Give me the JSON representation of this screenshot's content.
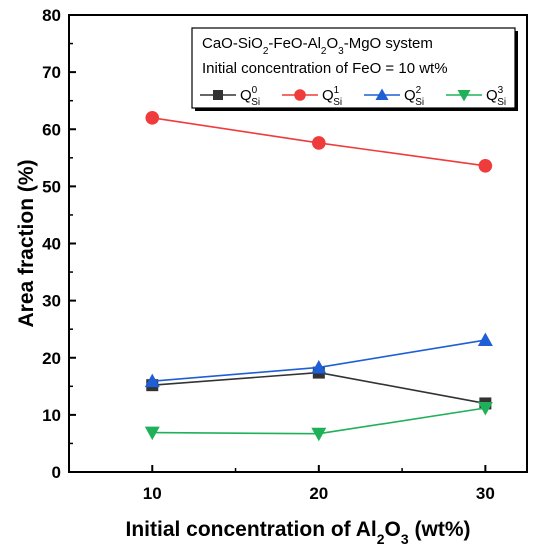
{
  "chart_data": {
    "type": "line",
    "title": "",
    "annotations": [
      {
        "id": "system",
        "parts": [
          {
            "t": "CaO-SiO"
          },
          {
            "t": "2",
            "sub": true
          },
          {
            "t": "-FeO-Al"
          },
          {
            "t": "2",
            "sub": true
          },
          {
            "t": "O"
          },
          {
            "t": "3",
            "sub": true
          },
          {
            "t": "-MgO system"
          }
        ]
      },
      {
        "id": "feo",
        "parts": [
          {
            "t": "Initial concentration of FeO = 10 wt%"
          }
        ]
      }
    ],
    "xlabel_parts": [
      {
        "t": "Initial concentration of Al"
      },
      {
        "t": "2",
        "sub": true
      },
      {
        "t": "O"
      },
      {
        "t": "3",
        "sub": true
      },
      {
        "t": " (wt%)"
      }
    ],
    "ylabel": "Area fraction (%)",
    "x_ticks": [
      10,
      20,
      30
    ],
    "y_ticks": [
      0,
      10,
      20,
      30,
      40,
      50,
      60,
      70,
      80
    ],
    "xlim": [
      5,
      32.5
    ],
    "ylim": [
      0,
      80
    ],
    "legend_position": "top-right",
    "series": [
      {
        "base": "Q",
        "sup": "0",
        "sub": "Si",
        "marker": "square",
        "color": "#333333",
        "x": [
          10,
          20,
          30
        ],
        "y": [
          15.2,
          17.4,
          12.0
        ]
      },
      {
        "base": "Q",
        "sup": "1",
        "sub": "Si",
        "marker": "circle",
        "color": "#ef3b3b",
        "x": [
          10,
          20,
          30
        ],
        "y": [
          62.0,
          57.6,
          53.6
        ]
      },
      {
        "base": "Q",
        "sup": "2",
        "sub": "Si",
        "marker": "triangle-up",
        "color": "#1f5fd6",
        "x": [
          10,
          20,
          30
        ],
        "y": [
          15.9,
          18.3,
          23.1
        ]
      },
      {
        "base": "Q",
        "sup": "3",
        "sub": "Si",
        "marker": "triangle-down",
        "color": "#1fb05a",
        "x": [
          10,
          20,
          30
        ],
        "y": [
          6.9,
          6.7,
          11.2
        ]
      }
    ]
  }
}
